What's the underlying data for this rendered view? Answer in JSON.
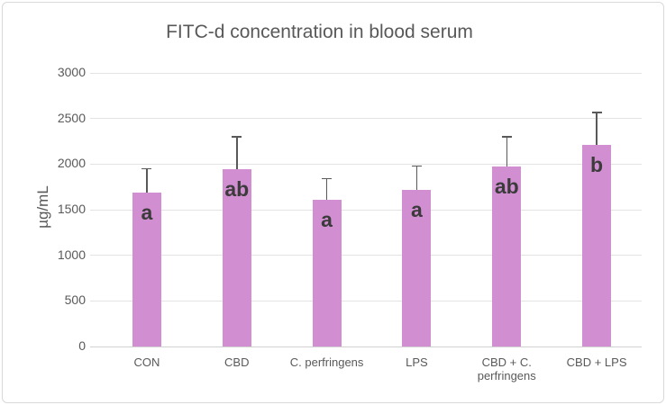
{
  "chart_data": {
    "type": "bar",
    "title": "FITC-d concentration in blood serum",
    "xlabel": "",
    "ylabel": "µg/mL",
    "categories": [
      "CON",
      "CBD",
      "C. perfringens",
      "LPS",
      "CBD + C. perfringens",
      "CBD + LPS"
    ],
    "values": [
      1690,
      1945,
      1605,
      1720,
      1975,
      2210
    ],
    "error_up": [
      260,
      355,
      235,
      260,
      325,
      355
    ],
    "sig_letters": [
      "a",
      "ab",
      "a",
      "a",
      "ab",
      "b"
    ],
    "yticks": [
      0,
      500,
      1000,
      1500,
      2000,
      2500,
      3000
    ],
    "ylim": [
      0,
      3000
    ],
    "grid": true,
    "legend": false,
    "colors": {
      "bar_fill": "#D18FD2",
      "error_bar": "#595959",
      "gridline": "#E3E3E3",
      "axis_line": "#D2D2D2",
      "title_text": "#595959",
      "tick_text": "#595959",
      "letter_text": "#3B3B3B",
      "border": "#D9D9D9"
    }
  }
}
